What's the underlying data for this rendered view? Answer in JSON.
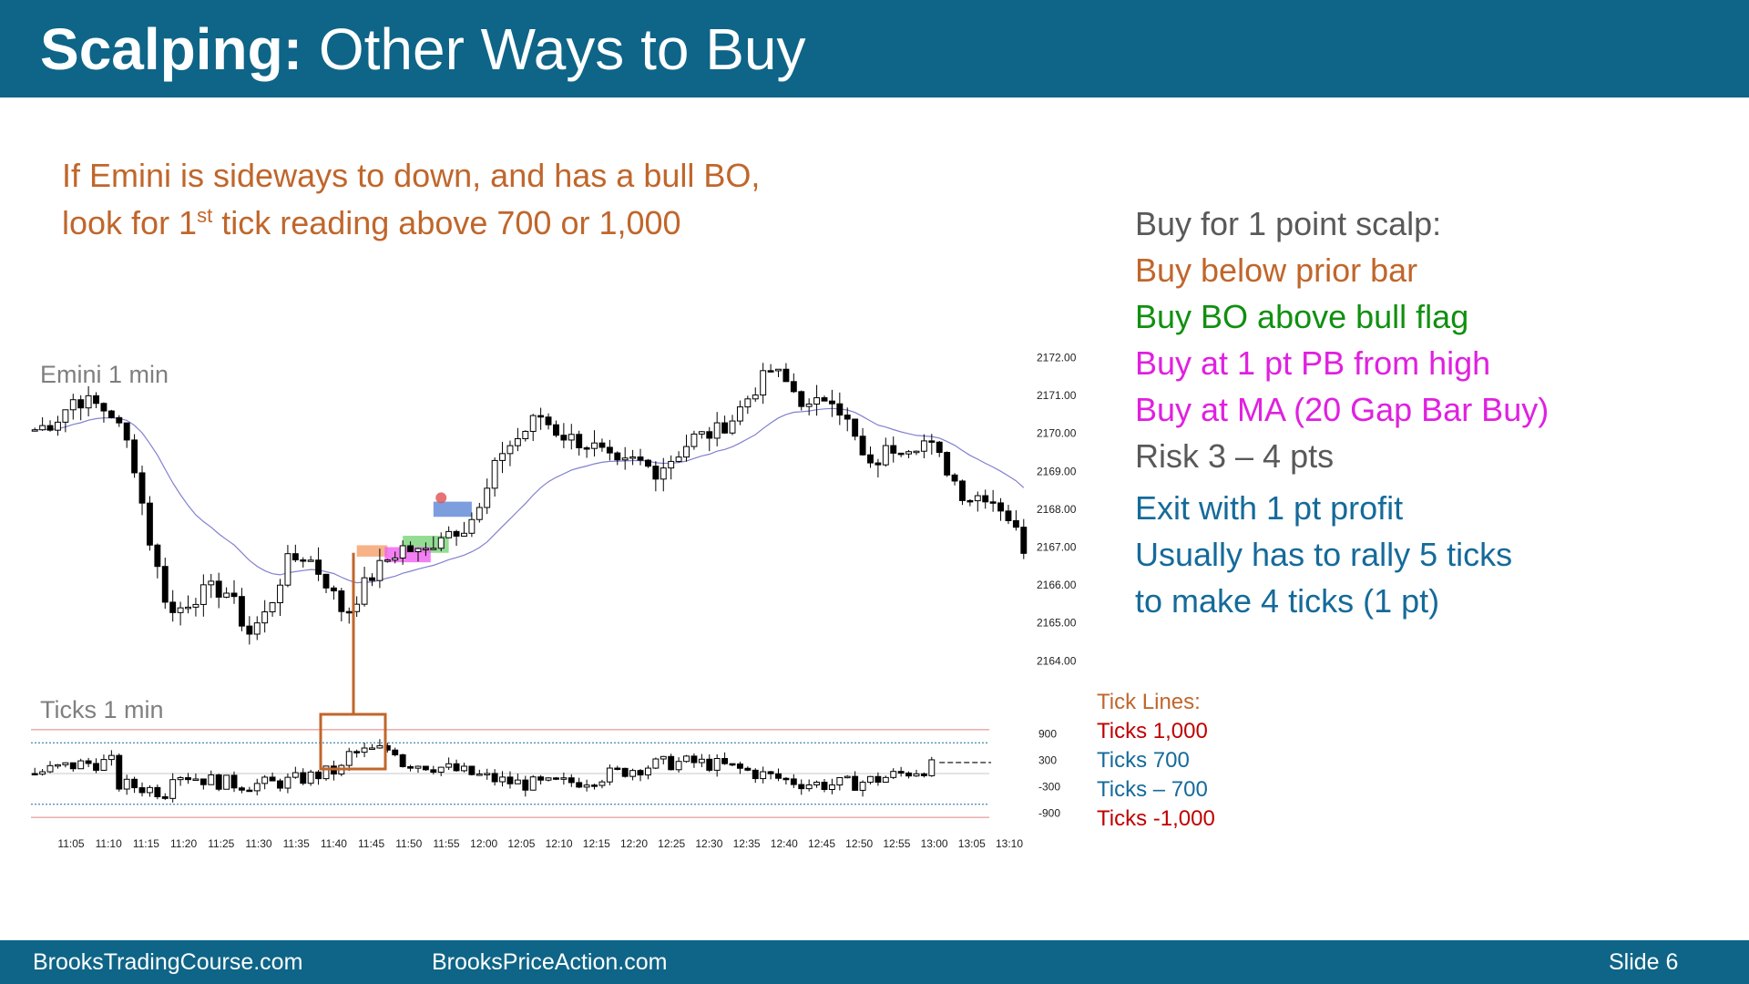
{
  "header": {
    "title_bold": "Scalping:",
    "title_rest": " Other Ways to Buy",
    "bg": "#0e6587"
  },
  "intro": {
    "line1": "If Emini is sideways to down, and has a bull BO,",
    "line2a": "look for 1",
    "line2sup": "st",
    "line2b": " tick reading above 700 or 1,000",
    "color": "#c0662b"
  },
  "rules": [
    {
      "text": "Buy for 1 point scalp:",
      "color": "#595959"
    },
    {
      "text": "Buy below prior bar",
      "color": "#c0662b"
    },
    {
      "text": "Buy BO above bull flag",
      "color": "#109010"
    },
    {
      "text": "Buy at 1 pt PB from high",
      "color": "#e020e0"
    },
    {
      "text": "Buy at MA (20 Gap Bar Buy)",
      "color": "#e020e0"
    },
    {
      "text": "Risk 3 – 4 pts",
      "color": "#595959"
    },
    {
      "text": "Exit with 1 pt profit",
      "color": "#156a9a"
    },
    {
      "text": "Usually has to rally 5 ticks",
      "color": "#156a9a"
    },
    {
      "text": "to make 4 ticks (1 pt)",
      "color": "#156a9a"
    }
  ],
  "tick_lines": {
    "title": "Tick Lines:",
    "items": [
      {
        "text": "Ticks 1,000",
        "color": "#c00000"
      },
      {
        "text": "Ticks 700",
        "color": "#156a9a"
      },
      {
        "text": "Ticks – 700",
        "color": "#156a9a"
      },
      {
        "text": "Ticks -1,000",
        "color": "#c00000"
      }
    ]
  },
  "footer": {
    "left": "BrooksTradingCourse.com",
    "middle": "BrooksPriceAction.com",
    "slide": "Slide  6"
  },
  "chart_data": [
    {
      "type": "candlestick",
      "title": "Emini 1 min",
      "yticks": [
        "2172.00",
        "2171.00",
        "2170.00",
        "2169.00",
        "2168.00",
        "2167.00",
        "2166.00",
        "2165.00",
        "2164.00"
      ],
      "ylim": [
        2163.6,
        2172.3
      ],
      "x_time_labels": [
        "11:05",
        "11:10",
        "11:15",
        "11:20",
        "11:25",
        "11:30",
        "11:35",
        "11:40",
        "11:45",
        "11:50",
        "11:55",
        "12:00",
        "12:05",
        "12:10",
        "12:15",
        "12:20",
        "12:25",
        "12:30",
        "12:35",
        "12:40",
        "12:45",
        "12:50",
        "12:55",
        "13:00",
        "13:05",
        "13:10"
      ],
      "close_path": [
        2170.1,
        2170.3,
        2170.9,
        2170.8,
        2170.5,
        2169.5,
        2167.0,
        2165.2,
        2165.6,
        2165.9,
        2165.8,
        2164.7,
        2165.3,
        2166.6,
        2166.8,
        2166.1,
        2165.2,
        2166.0,
        2166.6,
        2167.0,
        2166.8,
        2167.4,
        2167.5,
        2168.0,
        2169.5,
        2169.9,
        2170.5,
        2170.0,
        2169.8,
        2169.6,
        2169.1,
        2169.3,
        2169.0,
        2169.4,
        2169.9,
        2170.0,
        2170.4,
        2171.1,
        2171.7,
        2171.2,
        2170.6,
        2171.1,
        2170.2,
        2169.0,
        2169.6,
        2169.7,
        2169.8,
        2169.1,
        2168.3,
        2168.4,
        2168.0,
        2167.0
      ],
      "moving_average": "thin blue 20-bar EMA",
      "highlights": [
        {
          "label": "buy below prior bar",
          "color": "#f4a06a"
        },
        {
          "label": "buy BO above bull flag",
          "color": "#70d070"
        },
        {
          "label": "buy at 1 pt PB from high",
          "color": "#f060f0"
        },
        {
          "label": "buy at MA",
          "color": "#5b86d6"
        }
      ]
    },
    {
      "type": "candlestick",
      "title": "Ticks 1 min",
      "yticks": [
        "900",
        "300",
        "-300",
        "-900"
      ],
      "reference_lines": [
        {
          "name": "Ticks 1,000",
          "value": 1000,
          "color": "#e08080"
        },
        {
          "name": "Ticks 700",
          "value": 700,
          "color": "#156a9a"
        },
        {
          "name": "Ticks – 700",
          "value": -700,
          "color": "#156a9a"
        },
        {
          "name": "Ticks -1,000",
          "value": -1000,
          "color": "#e08080"
        }
      ],
      "ylim": [
        -1100,
        1100
      ]
    }
  ]
}
